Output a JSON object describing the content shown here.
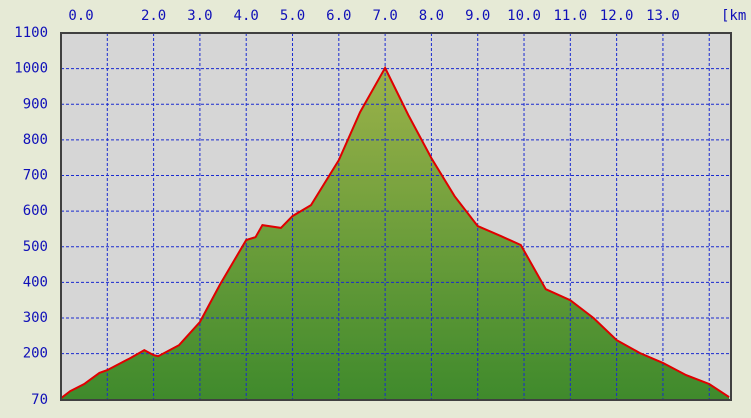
{
  "chart_data": {
    "type": "area",
    "xlabel": "[km",
    "x": [
      0,
      0.2,
      0.5,
      0.83,
      1.0,
      1.5,
      1.8,
      2.0,
      2.1,
      2.55,
      3.0,
      3.43,
      4.0,
      4.2,
      4.35,
      4.75,
      5.0,
      5.4,
      6.0,
      6.46,
      7.0,
      7.5,
      8.0,
      8.5,
      9.0,
      9.5,
      9.93,
      10.47,
      11.0,
      11.5,
      12.0,
      12.5,
      13.0,
      13.5,
      14.0,
      14.43
    ],
    "values": [
      75,
      95,
      115,
      146,
      154,
      188,
      210,
      196,
      193,
      224,
      289,
      393,
      519,
      527,
      561,
      553,
      586,
      617,
      743,
      878,
      1002,
      870,
      749,
      642,
      558,
      530,
      505,
      381,
      350,
      300,
      238,
      202,
      174,
      140,
      115,
      78
    ],
    "line_color": "#e00000",
    "fill_top": "#9cb24a",
    "fill_bottom": "#3f8a2c",
    "xlim": [
      0,
      14.47
    ],
    "ylim": [
      70,
      1100
    ],
    "xticks": [
      {
        "value": 0,
        "label": "0.0"
      },
      {
        "value": 1,
        "label": null
      },
      {
        "value": 2,
        "label": "2.0"
      },
      {
        "value": 3,
        "label": "3.0"
      },
      {
        "value": 4,
        "label": "4.0"
      },
      {
        "value": 5,
        "label": "5.0"
      },
      {
        "value": 6,
        "label": "6.0"
      },
      {
        "value": 7,
        "label": "7.0"
      },
      {
        "value": 8,
        "label": "8.0"
      },
      {
        "value": 9,
        "label": "9.0"
      },
      {
        "value": 10,
        "label": "10.0"
      },
      {
        "value": 11,
        "label": "11.0"
      },
      {
        "value": 12,
        "label": "12.0"
      },
      {
        "value": 13,
        "label": "13.0"
      },
      {
        "value": 14,
        "label": null
      }
    ],
    "yticks": [
      70,
      200,
      300,
      400,
      500,
      600,
      700,
      800,
      900,
      1000,
      1100
    ],
    "grid": true
  }
}
